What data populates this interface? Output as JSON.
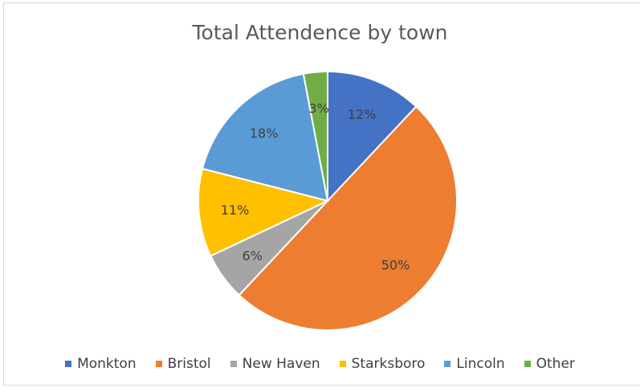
{
  "chart_data": {
    "type": "pie",
    "title": "Total Attendence by town",
    "categories": [
      "Monkton",
      "Bristol",
      "New Haven",
      "Starksboro",
      "Lincoln",
      "Other"
    ],
    "values": [
      12,
      50,
      6,
      11,
      18,
      3
    ],
    "data_labels": [
      "12%",
      "50%",
      "6%",
      "11%",
      "18%",
      "3%"
    ],
    "colors": [
      "#4472C4",
      "#ED7D31",
      "#A5A5A5",
      "#FFC000",
      "#5B9BD5",
      "#70AD47"
    ],
    "start_angle_deg": 0,
    "direction": "clockwise",
    "legend_position": "bottom"
  }
}
